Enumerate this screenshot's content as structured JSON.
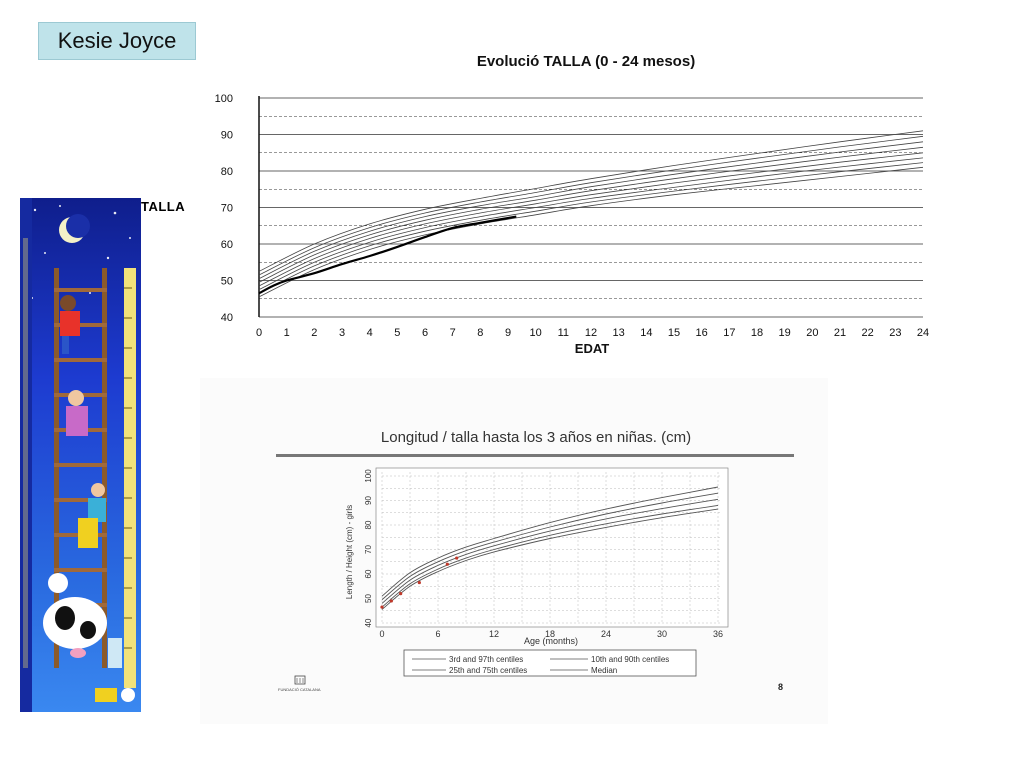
{
  "name_box": {
    "text": "Kesie Joyce"
  },
  "side_label": "TALLA",
  "chart_data": [
    {
      "type": "line",
      "title": "Evolució TALLA (0 - 24 mesos)",
      "xlabel": "EDAT",
      "ylabel": "",
      "xlim": [
        0,
        24
      ],
      "ylim": [
        40,
        100
      ],
      "x_ticks": [
        0,
        1,
        2,
        3,
        4,
        5,
        6,
        7,
        8,
        9,
        10,
        11,
        12,
        13,
        14,
        15,
        16,
        17,
        18,
        19,
        20,
        21,
        22,
        23,
        24
      ],
      "y_ticks": [
        40,
        50,
        60,
        70,
        80,
        90,
        100
      ],
      "grid": "horizontal",
      "reference_curves": {
        "x": [
          0,
          2,
          4,
          6,
          8,
          10,
          12,
          15,
          18,
          21,
          24
        ],
        "lines": [
          [
            45.5,
            53,
            58.5,
            62.5,
            65.5,
            68,
            70.5,
            73.5,
            76,
            78.5,
            81
          ],
          [
            46.5,
            54,
            59.5,
            63.5,
            66.5,
            69,
            71.5,
            74.5,
            77.2,
            79.8,
            82.3
          ],
          [
            47.5,
            55,
            60.5,
            64.5,
            67.5,
            70,
            72.5,
            75.5,
            78.4,
            81.1,
            83.6
          ],
          [
            48.5,
            56,
            61.5,
            65.5,
            68.5,
            71,
            73.5,
            76.7,
            79.6,
            82.4,
            85
          ],
          [
            49.5,
            57,
            62.5,
            66.5,
            69.5,
            72,
            74.6,
            77.9,
            80.9,
            83.8,
            86.5
          ],
          [
            50.5,
            58,
            63.5,
            67.5,
            70.5,
            73,
            75.7,
            79.1,
            82.2,
            85.2,
            88
          ],
          [
            51.5,
            59,
            64.5,
            68.5,
            71.5,
            74.1,
            76.8,
            80.3,
            83.5,
            86.6,
            89.5
          ],
          [
            52.5,
            60,
            65.5,
            69.5,
            72.5,
            75.2,
            77.9,
            81.5,
            84.8,
            88,
            91
          ]
        ]
      },
      "series": [
        {
          "x": [
            0,
            0.5,
            1,
            2,
            3,
            4,
            5,
            6,
            7,
            8,
            9.3
          ],
          "values": [
            46.5,
            48.5,
            50,
            52,
            54.5,
            56.7,
            59.2,
            61.9,
            64.4,
            65.8,
            67.5
          ]
        }
      ]
    },
    {
      "type": "line",
      "title": "Longitud / talla hasta los 3 años en niñas. (cm)",
      "xlabel": "Age (months)",
      "ylabel": "Length / Height (cm) - girls",
      "xlim": [
        0,
        36
      ],
      "ylim": [
        40,
        100
      ],
      "x_ticks": [
        0,
        6,
        12,
        18,
        24,
        30,
        36
      ],
      "y_ticks": [
        40,
        50,
        60,
        70,
        80,
        90,
        100
      ],
      "grid": "dashed",
      "centile_curves": {
        "x": [
          0,
          3,
          6,
          9,
          12,
          18,
          24,
          30,
          36
        ],
        "lines": [
          [
            45.5,
            55,
            61,
            65.5,
            69,
            74.5,
            79,
            83,
            86.5
          ],
          [
            46.5,
            56,
            62,
            66.5,
            70,
            75.8,
            80.5,
            84.5,
            88
          ],
          [
            48,
            57.5,
            63.5,
            68,
            71.5,
            77.5,
            82.5,
            86.7,
            90.5
          ],
          [
            49.5,
            59,
            65,
            69.5,
            73,
            79.2,
            84.5,
            89,
            93
          ],
          [
            51,
            60.5,
            66.5,
            71,
            74.5,
            81,
            86.5,
            91.2,
            95.5
          ]
        ]
      },
      "points": {
        "x": [
          0,
          1,
          2,
          4,
          7,
          8
        ],
        "values": [
          46.5,
          49,
          52,
          56.5,
          64,
          66.5
        ]
      },
      "legend": {
        "placement": "bottom",
        "items": [
          "3rd and 97th centiles",
          "10th and 90th centiles",
          "25th and 75th centiles",
          "Median"
        ]
      },
      "page_number": "8",
      "footer_label": "FUNDACIÓ CATALANA"
    }
  ]
}
